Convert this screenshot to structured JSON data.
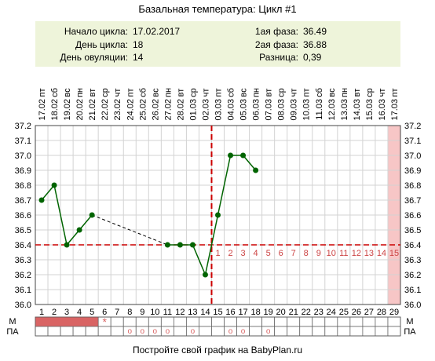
{
  "chart_data": {
    "type": "line",
    "title": "Базальная температура: Цикл #1",
    "summary": {
      "cycle_start_label": "Начало цикла:",
      "cycle_start_value": "17.02.2017",
      "cycle_day_label": "День цикла:",
      "cycle_day_value": "18",
      "ovulation_day_label": "День овуляции:",
      "ovulation_day_value": "14",
      "phase1_label": "1ая фаза:",
      "phase1_value": "36.49",
      "phase2_label": "2ая фаза:",
      "phase2_value": "36.88",
      "difference_label": "Разница:",
      "difference_value": "0,39"
    },
    "days": [
      1,
      2,
      3,
      4,
      5,
      6,
      7,
      8,
      9,
      10,
      11,
      12,
      13,
      14,
      15,
      16,
      17,
      18,
      19,
      20,
      21,
      22,
      23,
      24,
      25,
      26,
      27,
      28,
      29
    ],
    "weekdays": [
      "пт",
      "сб",
      "вс",
      "пн",
      "вт",
      "ср",
      "чт",
      "пт",
      "сб",
      "вс",
      "пн",
      "вт",
      "ср",
      "чт",
      "пт",
      "сб",
      "вс",
      "пн",
      "вт",
      "ср",
      "чт",
      "пт",
      "сб",
      "вс",
      "пн",
      "вт",
      "ср",
      "чт",
      "пт"
    ],
    "dates": [
      "17.02",
      "18.02",
      "19.02",
      "20.02",
      "21.02",
      "22.02",
      "23.02",
      "24.02",
      "25.02",
      "26.02",
      "27.02",
      "28.02",
      "01.03",
      "02.03",
      "03.03",
      "04.03",
      "05.03",
      "06.03",
      "07.03",
      "08.03",
      "09.03",
      "10.03",
      "11.03",
      "12.03",
      "13.03",
      "14.03",
      "15.03",
      "16.03",
      "17.03"
    ],
    "y_ticks": [
      "36.0",
      "36.1",
      "36.2",
      "36.3",
      "36.4",
      "36.5",
      "36.6",
      "36.7",
      "36.8",
      "36.9",
      "37.0",
      "37.1",
      "37.2"
    ],
    "ylim": [
      36.0,
      37.2
    ],
    "xlim": [
      1,
      29
    ],
    "temperatures": [
      36.7,
      36.8,
      36.4,
      36.5,
      36.6,
      null,
      null,
      null,
      null,
      null,
      36.4,
      36.4,
      36.4,
      36.2,
      36.6,
      37.0,
      37.0,
      36.9,
      null,
      null,
      null,
      null,
      null,
      null,
      null,
      null,
      null,
      null,
      null
    ],
    "coverline_value": 36.4,
    "ovulation_day": 14,
    "luteal_day_labels": [
      "1",
      "2",
      "3",
      "4",
      "5",
      "6",
      "7",
      "8",
      "9",
      "10",
      "11",
      "12",
      "13",
      "14",
      "15"
    ],
    "luteal_start_day": 15,
    "highlight_day": 29,
    "menstruation_days": [
      1,
      2,
      3,
      4,
      5
    ],
    "menstruation_star_day": 6,
    "menstruation_star_symbol": "*",
    "pa_days": [
      8,
      9,
      10,
      11,
      13,
      16,
      17,
      19
    ],
    "pa_symbol": "o",
    "row_label_m": "М",
    "row_label_pa": "ПА",
    "footer": "Постройте свой график на BabyPlan.ru",
    "colors": {
      "line": "#006400",
      "coverline": "#cc0000",
      "ovulation": "#cc0000",
      "highlight": "#f7c6c6",
      "menstruation": "#d96464",
      "luteal_labels": "#cc4444",
      "summary_box": "#eef4da",
      "grid": "#d3d3d3",
      "dashed_gap": "#000000"
    }
  }
}
